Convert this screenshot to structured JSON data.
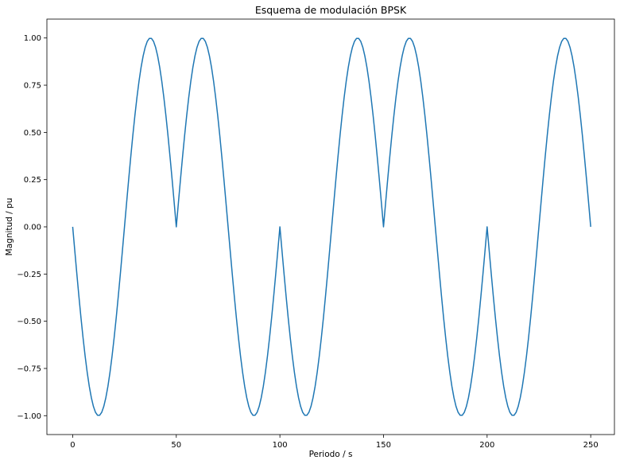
{
  "chart_data": {
    "type": "line",
    "title": "Esquema de modulación BPSK",
    "xlabel": "Periodo / s",
    "ylabel": "Magnitud / pu",
    "xlim": [
      -12.45,
      261.45
    ],
    "ylim": [
      -1.1,
      1.1
    ],
    "x_ticks": [
      0,
      50,
      100,
      150,
      200,
      250
    ],
    "x_tick_labels": [
      "0",
      "50",
      "100",
      "150",
      "200",
      "250"
    ],
    "y_ticks": [
      1.0,
      0.75,
      0.5,
      0.25,
      0.0,
      -0.25,
      -0.5,
      -0.75,
      -1.0
    ],
    "y_tick_labels": [
      "1.00",
      "0.75",
      "0.50",
      "0.25",
      "0.00",
      "−0.25",
      "−0.50",
      "−0.75",
      "−1.00"
    ],
    "grid": false,
    "series": [
      {
        "color": "#1f77b4",
        "x_start": 0,
        "x_step": 1,
        "values": [
          0.0,
          -0.1253,
          -0.2487,
          -0.3681,
          -0.4818,
          -0.5878,
          -0.6845,
          -0.7705,
          -0.8443,
          -0.9048,
          -0.9511,
          -0.9823,
          -0.998,
          -0.998,
          -0.9823,
          -0.9511,
          -0.9048,
          -0.8443,
          -0.7705,
          -0.6845,
          -0.5878,
          -0.4818,
          -0.3681,
          -0.2487,
          -0.1253,
          0.0,
          0.1253,
          0.2487,
          0.3681,
          0.4818,
          0.5878,
          0.6845,
          0.7705,
          0.8443,
          0.9048,
          0.9511,
          0.9823,
          0.998,
          0.998,
          0.9823,
          0.9511,
          0.9048,
          0.8443,
          0.7705,
          0.6845,
          0.5878,
          0.4818,
          0.3681,
          0.2487,
          0.1253,
          0.0,
          0.1253,
          0.2487,
          0.3681,
          0.4818,
          0.5878,
          0.6845,
          0.7705,
          0.8443,
          0.9048,
          0.9511,
          0.9823,
          0.998,
          0.998,
          0.9823,
          0.9511,
          0.9048,
          0.8443,
          0.7705,
          0.6845,
          0.5878,
          0.4818,
          0.3681,
          0.2487,
          0.1253,
          0.0,
          -0.1253,
          -0.2487,
          -0.3681,
          -0.4818,
          -0.5878,
          -0.6845,
          -0.7705,
          -0.8443,
          -0.9048,
          -0.9511,
          -0.9823,
          -0.998,
          -0.998,
          -0.9823,
          -0.9511,
          -0.9048,
          -0.8443,
          -0.7705,
          -0.6845,
          -0.5878,
          -0.4818,
          -0.3681,
          -0.2487,
          -0.1253,
          0.0,
          -0.1253,
          -0.2487,
          -0.3681,
          -0.4818,
          -0.5878,
          -0.6845,
          -0.7705,
          -0.8443,
          -0.9048,
          -0.9511,
          -0.9823,
          -0.998,
          -0.998,
          -0.9823,
          -0.9511,
          -0.9048,
          -0.8443,
          -0.7705,
          -0.6845,
          -0.5878,
          -0.4818,
          -0.3681,
          -0.2487,
          -0.1253,
          0.0,
          0.1253,
          0.2487,
          0.3681,
          0.4818,
          0.5878,
          0.6845,
          0.7705,
          0.8443,
          0.9048,
          0.9511,
          0.9823,
          0.998,
          0.998,
          0.9823,
          0.9511,
          0.9048,
          0.8443,
          0.7705,
          0.6845,
          0.5878,
          0.4818,
          0.3681,
          0.2487,
          0.1253,
          0.0,
          0.1253,
          0.2487,
          0.3681,
          0.4818,
          0.5878,
          0.6845,
          0.7705,
          0.8443,
          0.9048,
          0.9511,
          0.9823,
          0.998,
          0.998,
          0.9823,
          0.9511,
          0.9048,
          0.8443,
          0.7705,
          0.6845,
          0.5878,
          0.4818,
          0.3681,
          0.2487,
          0.1253,
          0.0,
          -0.1253,
          -0.2487,
          -0.3681,
          -0.4818,
          -0.5878,
          -0.6845,
          -0.7705,
          -0.8443,
          -0.9048,
          -0.9511,
          -0.9823,
          -0.998,
          -0.998,
          -0.9823,
          -0.9511,
          -0.9048,
          -0.8443,
          -0.7705,
          -0.6845,
          -0.5878,
          -0.4818,
          -0.3681,
          -0.2487,
          -0.1253,
          0.0,
          -0.1253,
          -0.2487,
          -0.3681,
          -0.4818,
          -0.5878,
          -0.6845,
          -0.7705,
          -0.8443,
          -0.9048,
          -0.9511,
          -0.9823,
          -0.998,
          -0.998,
          -0.9823,
          -0.9511,
          -0.9048,
          -0.8443,
          -0.7705,
          -0.6845,
          -0.5878,
          -0.4818,
          -0.3681,
          -0.2487,
          -0.1253,
          0.0,
          0.1253,
          0.2487,
          0.3681,
          0.4818,
          0.5878,
          0.6845,
          0.7705,
          0.8443,
          0.9048,
          0.9511,
          0.9823,
          0.998,
          0.998,
          0.9823,
          0.9511,
          0.9048,
          0.8443,
          0.7705,
          0.6845,
          0.5878,
          0.4818,
          0.3681,
          0.2487,
          0.1253,
          0.0
        ]
      }
    ]
  }
}
